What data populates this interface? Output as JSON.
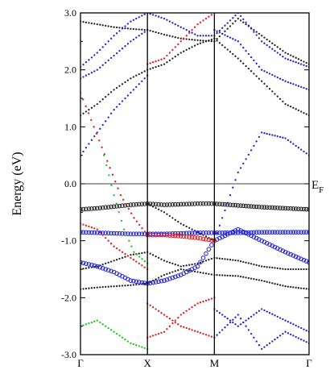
{
  "chart_data": {
    "type": "scatter",
    "title": "",
    "xlabel": "",
    "ylabel": "Energy (eV)",
    "ylim": [
      -3.0,
      3.0
    ],
    "yticks": [
      "3.0",
      "2.0",
      "1.0",
      "0.0",
      "-1.0",
      "-2.0",
      "-3.0"
    ],
    "ytick_values": [
      3.0,
      2.0,
      1.0,
      0.0,
      -1.0,
      -2.0,
      -3.0
    ],
    "k_path": [
      {
        "label": "Γ",
        "k": 0.0
      },
      {
        "label": "X",
        "k": 1.0
      },
      {
        "label": "M",
        "k": 2.0
      },
      {
        "label": "Γ",
        "k": 3.414
      }
    ],
    "fermi_level": {
      "label": "E",
      "sub": "F",
      "energy": 0.0
    },
    "grid": false,
    "legend": "none",
    "colors": {
      "black": "#222222",
      "blue": "#1f1fd6",
      "red": "#e01b1b",
      "green": "#19c419"
    },
    "series": [
      {
        "color": "black",
        "x": [
          0,
          0.25,
          0.5,
          0.75,
          1,
          1.25,
          1.5,
          1.75,
          2,
          2.354,
          2.707,
          3.061,
          3.414
        ],
        "y": [
          -0.45,
          -0.43,
          -0.4,
          -0.37,
          -0.35,
          -0.37,
          -0.36,
          -0.35,
          -0.35,
          -0.38,
          -0.41,
          -0.43,
          -0.45
        ],
        "emph": true
      },
      {
        "color": "black",
        "x": [
          0,
          0.25,
          0.5,
          0.75,
          1,
          1.25,
          1.5,
          1.75,
          2,
          2.354,
          2.707,
          3.061,
          3.414
        ],
        "y": [
          -1.85,
          -1.82,
          -1.8,
          -1.78,
          -1.75,
          -1.6,
          -1.5,
          -1.55,
          -1.6,
          -1.62,
          -1.7,
          -1.8,
          -1.85
        ]
      },
      {
        "color": "black",
        "x": [
          0,
          0.25,
          0.5,
          0.75,
          1,
          1.25,
          1.5,
          1.75,
          2,
          2.354,
          2.707,
          3.061,
          3.414
        ],
        "y": [
          2.85,
          2.8,
          2.75,
          2.72,
          2.7,
          2.62,
          2.55,
          2.52,
          2.5,
          2.9,
          2.6,
          2.3,
          2.1
        ]
      },
      {
        "color": "black",
        "x": [
          0,
          0.25,
          0.5,
          0.75,
          1,
          1.25,
          1.5,
          1.75,
          2,
          2.354,
          2.707,
          3.061,
          3.414
        ],
        "y": [
          1.2,
          1.4,
          1.65,
          1.85,
          2.0,
          2.1,
          2.3,
          2.45,
          2.55,
          2.2,
          1.8,
          1.4,
          1.2
        ]
      },
      {
        "color": "black",
        "x": [
          1,
          1.25,
          1.5,
          1.75,
          2
        ],
        "y": [
          -0.35,
          -0.5,
          -0.7,
          -0.85,
          -1.0
        ]
      },
      {
        "color": "black",
        "x": [
          0,
          0.25,
          0.5,
          0.75,
          1,
          1.25,
          1.5,
          1.75,
          2,
          2.354,
          2.707,
          3.061,
          3.414
        ],
        "y": [
          -1.5,
          -1.45,
          -1.35,
          -1.25,
          -1.2,
          -1.35,
          -1.45,
          -1.4,
          -1.3,
          -1.35,
          -1.45,
          -1.5,
          -1.5
        ]
      },
      {
        "color": "blue",
        "x": [
          0,
          0.25,
          0.5,
          0.75,
          1,
          1.25,
          1.5,
          1.75,
          2,
          2.354,
          2.707,
          3.061,
          3.414
        ],
        "y": [
          -0.85,
          -0.86,
          -0.87,
          -0.88,
          -0.88,
          -0.88,
          -0.87,
          -0.86,
          -0.86,
          -0.86,
          -0.85,
          -0.85,
          -0.85
        ],
        "emph": true
      },
      {
        "color": "blue",
        "x": [
          0,
          0.25,
          0.5,
          0.75,
          1,
          1.25,
          1.5,
          1.75,
          2,
          2.354,
          2.707,
          3.061,
          3.414
        ],
        "y": [
          -1.38,
          -1.45,
          -1.55,
          -1.7,
          -1.75,
          -1.7,
          -1.6,
          -1.45,
          -1.0,
          -0.8,
          -1.0,
          -1.2,
          -1.38
        ],
        "emph": true
      },
      {
        "color": "blue",
        "x": [
          0,
          0.25,
          0.5,
          0.75,
          1
        ],
        "y": [
          0.5,
          0.9,
          1.3,
          1.6,
          1.9
        ]
      },
      {
        "color": "blue",
        "x": [
          2,
          2.354,
          2.707,
          3.061,
          3.414
        ],
        "y": [
          -1.0,
          0.2,
          0.9,
          0.8,
          0.5
        ]
      },
      {
        "color": "blue",
        "x": [
          0,
          0.25,
          0.5,
          0.75,
          1,
          1.25,
          1.5,
          1.75,
          2,
          2.354,
          2.707,
          3.061,
          3.414
        ],
        "y": [
          2.05,
          2.3,
          2.6,
          2.85,
          3.0,
          2.9,
          2.75,
          2.6,
          2.6,
          3.0,
          2.5,
          2.2,
          2.05
        ]
      },
      {
        "color": "blue",
        "x": [
          0,
          0.25,
          0.5,
          0.75,
          1
        ],
        "y": [
          1.85,
          2.0,
          2.25,
          2.5,
          2.7
        ]
      },
      {
        "color": "blue",
        "x": [
          2,
          2.354,
          2.707,
          3.061,
          3.414
        ],
        "y": [
          2.7,
          2.5,
          2.0,
          1.8,
          1.65
        ]
      },
      {
        "color": "blue",
        "x": [
          2,
          2.354,
          2.707,
          3.061,
          3.414
        ],
        "y": [
          -2.2,
          -2.5,
          -2.2,
          -2.4,
          -2.6
        ]
      },
      {
        "color": "blue",
        "x": [
          2,
          2.354,
          2.707,
          3.061,
          3.414
        ],
        "y": [
          -2.7,
          -2.3,
          -2.9,
          -2.6,
          -2.8
        ]
      },
      {
        "color": "red",
        "x": [
          1,
          1.25,
          1.5,
          1.75,
          2
        ],
        "y": [
          -0.9,
          -0.9,
          -0.92,
          -0.95,
          -1.0
        ],
        "emph": true
      },
      {
        "color": "red",
        "x": [
          0,
          0.2,
          0.4,
          0.6,
          0.8,
          1
        ],
        "y": [
          1.6,
          1.0,
          0.4,
          -0.2,
          -0.6,
          -0.9
        ]
      },
      {
        "color": "red",
        "x": [
          0,
          0.25,
          0.5,
          0.75,
          1
        ],
        "y": [
          -0.7,
          -0.8,
          -1.1,
          -1.3,
          -1.5
        ]
      },
      {
        "color": "red",
        "x": [
          1,
          1.25,
          1.5,
          1.75,
          2
        ],
        "y": [
          2.1,
          2.2,
          2.5,
          2.8,
          3.0
        ]
      },
      {
        "color": "red",
        "x": [
          1,
          1.25,
          1.5,
          1.75,
          2
        ],
        "y": [
          -2.1,
          -2.3,
          -2.5,
          -2.6,
          -2.7
        ]
      },
      {
        "color": "red",
        "x": [
          1,
          1.25,
          1.5,
          1.75,
          2
        ],
        "y": [
          -2.7,
          -2.6,
          -2.3,
          -2.1,
          -2.0
        ]
      },
      {
        "color": "green",
        "x": [
          0.35,
          0.5,
          0.65,
          0.8,
          1
        ],
        "y": [
          0.5,
          -0.2,
          -0.8,
          -1.2,
          -1.4
        ]
      },
      {
        "color": "green",
        "x": [
          0,
          0.25,
          0.5,
          0.75,
          1
        ],
        "y": [
          -2.5,
          -2.4,
          -2.6,
          -2.8,
          -2.9
        ]
      }
    ]
  }
}
